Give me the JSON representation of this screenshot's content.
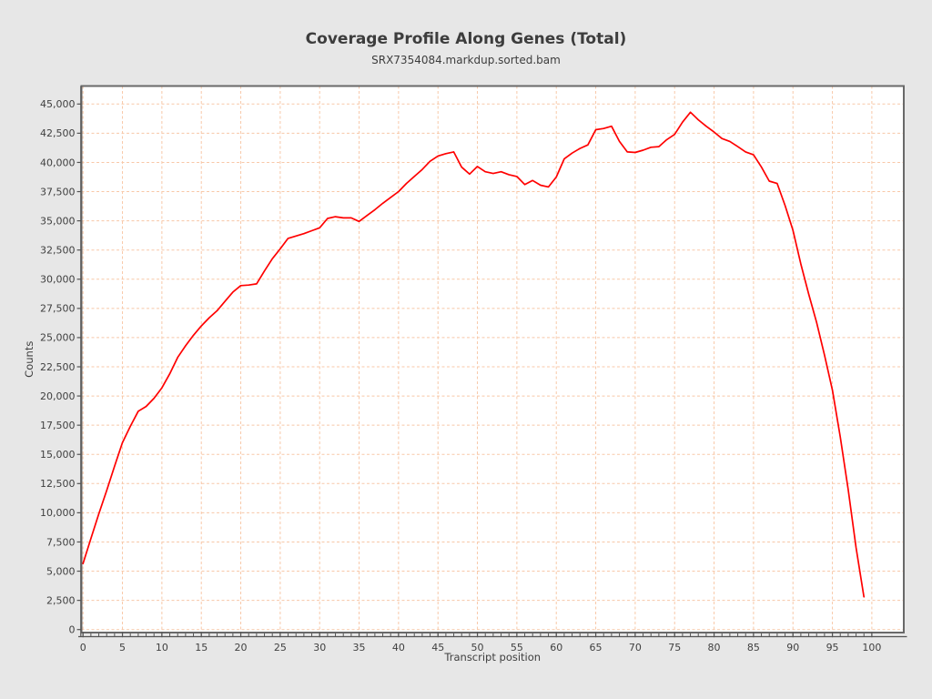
{
  "header": {
    "title": "Coverage Profile Along Genes (Total)",
    "subtitle": "SRX7354084.markdup.sorted.bam"
  },
  "chart_data": {
    "type": "line",
    "title": "Coverage Profile Along Genes (Total)",
    "subtitle": "SRX7354084.markdup.sorted.bam",
    "xlabel": "Transcript position",
    "ylabel": "Counts",
    "xlim": [
      0,
      100
    ],
    "ylim": [
      0,
      45000
    ],
    "grid": "dashed-both-axes",
    "legend": "none",
    "x_ticks": [
      0,
      5,
      10,
      15,
      20,
      25,
      30,
      35,
      40,
      45,
      50,
      55,
      60,
      65,
      70,
      75,
      80,
      85,
      90,
      95,
      100
    ],
    "x_minor_tick_step": 1,
    "y_ticks": [
      0,
      2500,
      5000,
      7500,
      10000,
      12500,
      15000,
      17500,
      20000,
      22500,
      25000,
      27500,
      30000,
      32500,
      35000,
      37500,
      40000,
      42500,
      45000
    ],
    "colors": {
      "page_background": "#e7e7e7",
      "plot_background": "#ffffff",
      "frame": "#696969",
      "axis": "#545454",
      "grid": "#f8c8a8",
      "tick_text": "#3f3f3f",
      "series": "#ff0000"
    },
    "series": [
      {
        "name": "SRX7354084.markdup.sorted.bam",
        "color": "#ff0000",
        "x_start": 0,
        "x_step": 1,
        "values": [
          5650,
          7800,
          9900,
          11900,
          14000,
          16000,
          17400,
          18700,
          19100,
          19800,
          20700,
          21900,
          23300,
          24300,
          25200,
          26000,
          26700,
          27300,
          28100,
          28900,
          29450,
          29500,
          29600,
          30700,
          31750,
          32600,
          33500,
          33700,
          33900,
          34150,
          34400,
          35200,
          35350,
          35250,
          35250,
          34950,
          35450,
          35950,
          36500,
          37000,
          37500,
          38200,
          38800,
          39400,
          40100,
          40550,
          40750,
          40900,
          39600,
          39000,
          39650,
          39200,
          39050,
          39200,
          38950,
          38800,
          38100,
          38450,
          38050,
          37900,
          38750,
          40300,
          40800,
          41200,
          41500,
          42800,
          42900,
          43100,
          41800,
          40900,
          40850,
          41050,
          41300,
          41350,
          41950,
          42400,
          43450,
          44300,
          43650,
          43100,
          42600,
          42050,
          41800,
          41350,
          40900,
          40650,
          39600,
          38400,
          38200,
          36300,
          34200,
          31300,
          28700,
          26300,
          23500,
          20500,
          16500,
          12000,
          7000,
          2800
        ]
      }
    ]
  }
}
